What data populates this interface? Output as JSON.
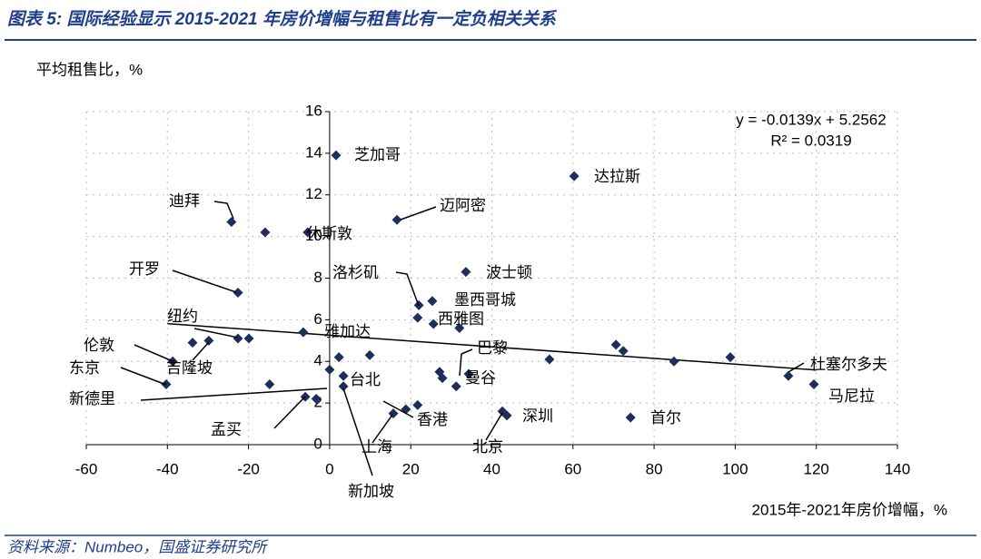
{
  "header": {
    "title": "图表 5: 国际经验显示 2015-2021 年房价增幅与租售比有一定负相关关系"
  },
  "footer": {
    "source": "资料来源：Numbeo，国盛证券研究所"
  },
  "chart_data": {
    "type": "scatter",
    "y_label": "平均租售比，%",
    "x_label": "2015年-2021年房价增幅，%",
    "equation": [
      "y = -0.0139x + 5.2562",
      "R² = 0.0319"
    ],
    "trendline": {
      "slope": -0.0139,
      "intercept": 5.2562,
      "x_range": [
        -40,
        120
      ]
    },
    "xlim": [
      -60,
      140
    ],
    "xticks": [
      -60,
      -40,
      -20,
      0,
      20,
      40,
      60,
      80,
      100,
      120,
      140
    ],
    "ylim": [
      0,
      16
    ],
    "yticks": [
      0,
      2,
      4,
      6,
      8,
      10,
      12,
      14,
      16
    ],
    "grid": true,
    "color": "#1f2d5c",
    "x": [
      1.6,
      60.3,
      -24.2,
      -15.9,
      -5.4,
      16.6,
      -22.6,
      33.6,
      22,
      25.3,
      21.7,
      25.6,
      32.0,
      -6.5,
      -22.6,
      -19.9,
      -29.8,
      -33.8,
      -38.7,
      2.3,
      9.9,
      0,
      -40.3,
      -14.8,
      3.4,
      3.4,
      27.1,
      27.8,
      34.3,
      31.2,
      54.2,
      70.6,
      72.4,
      84.9,
      98.8,
      113.1,
      119.4,
      74.2,
      42.6,
      43.7,
      15.7,
      18.8,
      21.7,
      -6.0,
      -3.3
    ],
    "values": [
      13.9,
      12.9,
      10.7,
      10.2,
      10.2,
      10.8,
      7.3,
      8.3,
      6.7,
      6.9,
      6.1,
      5.8,
      5.6,
      5.4,
      5.1,
      5.1,
      5.0,
      4.9,
      4.0,
      4.2,
      4.3,
      3.6,
      2.9,
      2.9,
      3.3,
      2.8,
      3.5,
      3.2,
      3.4,
      2.8,
      4.1,
      4.8,
      4.5,
      4.0,
      4.2,
      3.3,
      2.9,
      1.3,
      1.6,
      1.4,
      1.5,
      1.7,
      1.9,
      2.3,
      2.2
    ],
    "annotations": [
      "芝加哥",
      "达拉斯",
      "迪拜",
      "休斯敦",
      "迈阿密",
      "开罗",
      "波士顿",
      "洛杉矶",
      "墨西哥城",
      "西雅图",
      "雅加达",
      "纽约",
      "伦敦",
      "吉隆坡",
      "东京",
      "巴黎",
      "曼谷",
      "台北",
      "新德里",
      "香港",
      "孟买",
      "上海",
      "新加坡",
      "北京",
      "深圳",
      "首尔",
      "杜塞尔多夫",
      "马尼拉"
    ]
  }
}
